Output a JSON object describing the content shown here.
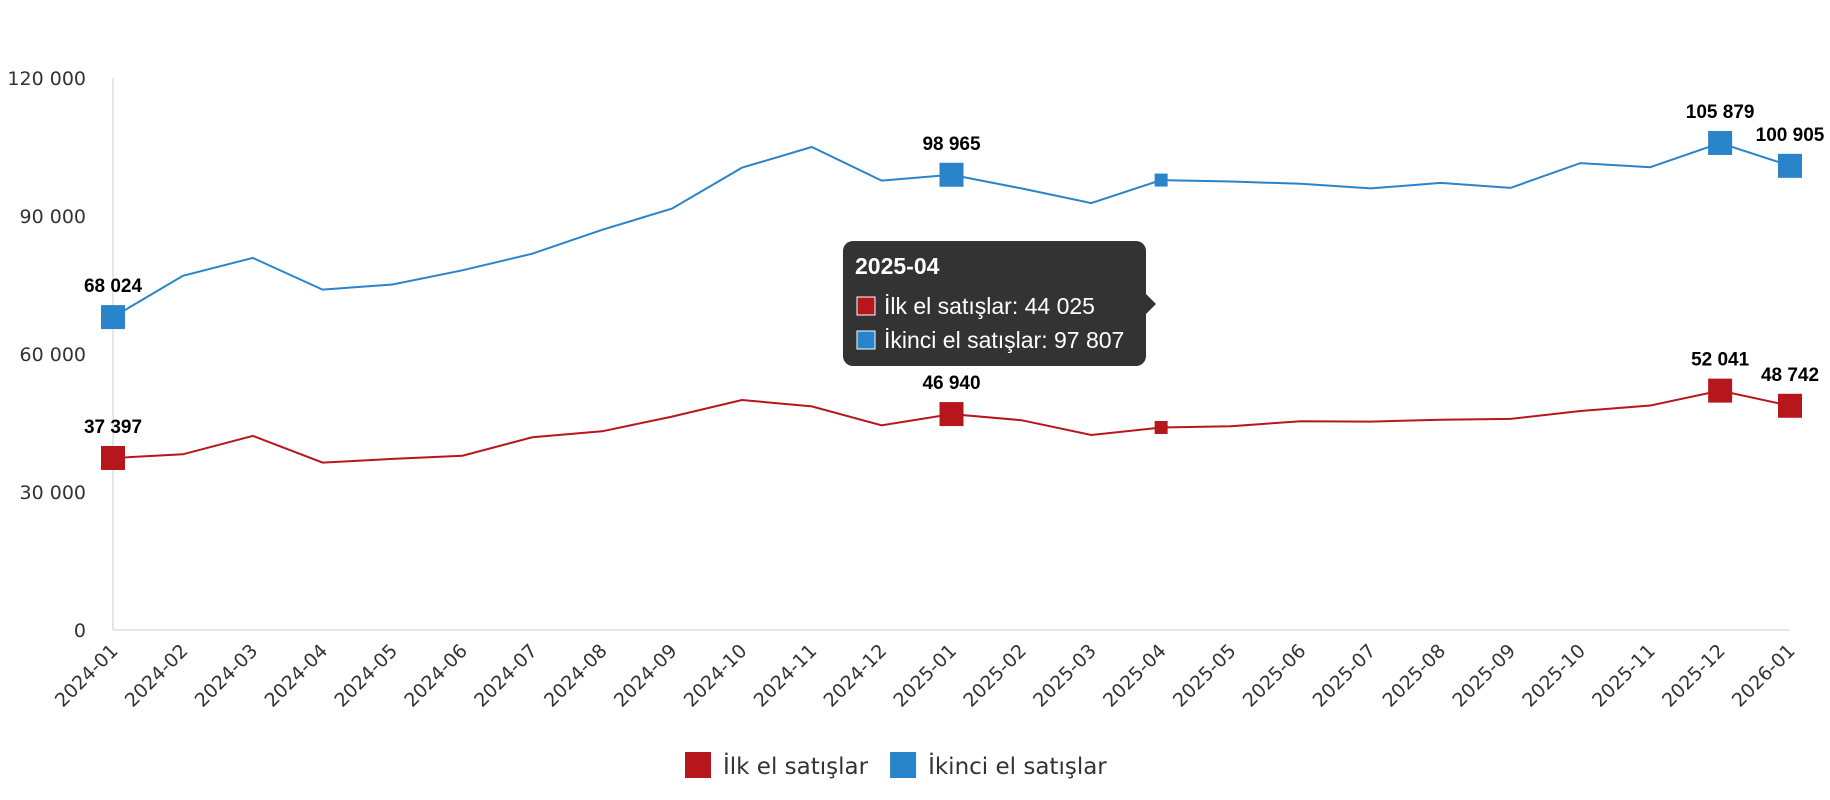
{
  "chart_data": {
    "type": "line",
    "categories": [
      "2024-01",
      "2024-02",
      "2024-03",
      "2024-04",
      "2024-05",
      "2024-06",
      "2024-07",
      "2024-08",
      "2024-09",
      "2024-10",
      "2024-11",
      "2024-12",
      "2025-01",
      "2025-02",
      "2025-03",
      "2025-04",
      "2025-05",
      "2025-06",
      "2025-07",
      "2025-08",
      "2025-09",
      "2025-10",
      "2025-11",
      "2025-12",
      "2026-01"
    ],
    "series": [
      {
        "name": "İlk el satışlar",
        "color": "#b5171c",
        "values": [
          37397,
          38200,
          42200,
          36400,
          37200,
          37900,
          41900,
          43200,
          46400,
          50000,
          48600,
          44500,
          46940,
          45600,
          42400,
          44025,
          44300,
          45400,
          45300,
          45700,
          45900,
          47600,
          48800,
          52041,
          48742
        ]
      },
      {
        "name": "İkinci el satışlar",
        "color": "#2a84c9",
        "values": [
          68024,
          77000,
          80900,
          74000,
          75100,
          78200,
          81800,
          87000,
          91600,
          100500,
          105000,
          97700,
          98965,
          96000,
          92800,
          97807,
          97500,
          97000,
          96000,
          97200,
          96100,
          101500,
          100600,
          105879,
          100905
        ]
      }
    ],
    "ylim": [
      0,
      120000
    ],
    "yticks": [
      "0",
      "30 000",
      "60 000",
      "90 000",
      "120 000"
    ],
    "ytick_values": [
      0,
      30000,
      60000,
      90000,
      120000
    ],
    "data_labels": [
      {
        "series": 0,
        "index": 0,
        "text": "37 397"
      },
      {
        "series": 0,
        "index": 12,
        "text": "46 940"
      },
      {
        "series": 0,
        "index": 23,
        "text": "52 041"
      },
      {
        "series": 0,
        "index": 24,
        "text": "48 742"
      },
      {
        "series": 1,
        "index": 0,
        "text": "68 024"
      },
      {
        "series": 1,
        "index": 12,
        "text": "98 965"
      },
      {
        "series": 1,
        "index": 23,
        "text": "105 879"
      },
      {
        "series": 1,
        "index": 24,
        "text": "100 905"
      }
    ],
    "highlighted_index": 15,
    "legend": {
      "position": "bottom-center"
    },
    "grid": false
  },
  "tooltip": {
    "title": "2025-04",
    "rows": [
      {
        "label": "İlk el satışlar: 44 025",
        "color": "#b5171c"
      },
      {
        "label": "İkinci el satışlar: 97 807",
        "color": "#2a84c9"
      }
    ]
  }
}
